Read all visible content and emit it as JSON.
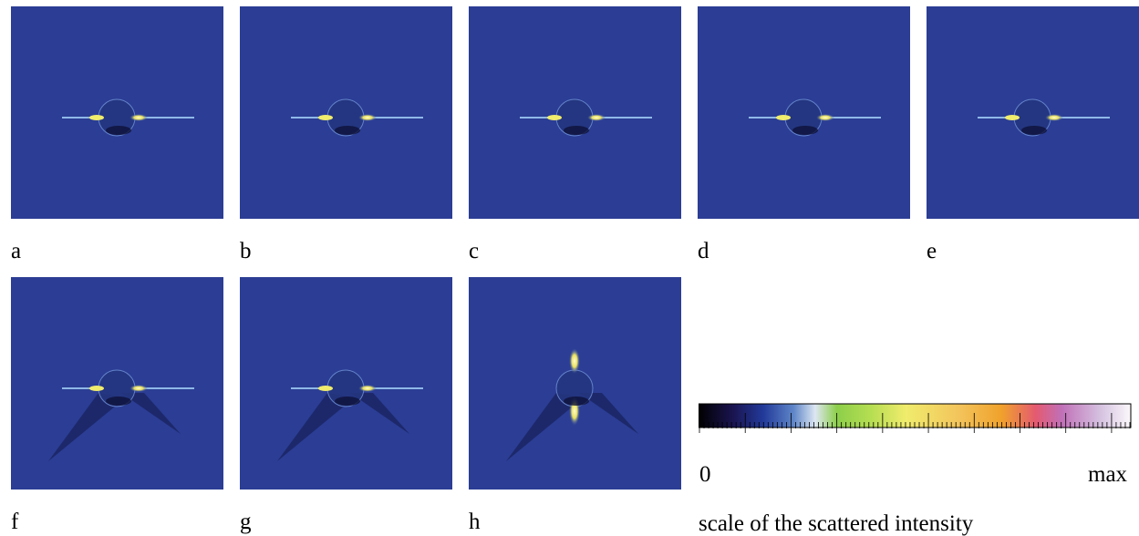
{
  "panels": [
    {
      "label": "a"
    },
    {
      "label": "b"
    },
    {
      "label": "c"
    },
    {
      "label": "d"
    },
    {
      "label": "e"
    },
    {
      "label": "f"
    },
    {
      "label": "g"
    },
    {
      "label": "h"
    }
  ],
  "colorbar": {
    "min_label": "0",
    "max_label": "max",
    "caption": "scale of the scattered intensity"
  }
}
